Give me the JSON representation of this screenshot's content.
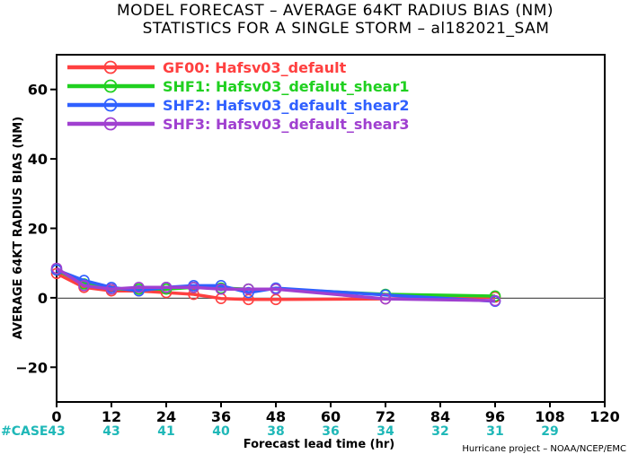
{
  "chart_data": {
    "type": "line",
    "title": "MODEL FORECAST – AVERAGE 64KT RADIUS BIAS (NM)",
    "subtitle": "STATISTICS FOR A SINGLE STORM – al182021_SAM",
    "xlabel": "Forecast lead time (hr)",
    "ylabel": "AVERAGE 64KT RADIUS BIAS (NM)",
    "xlim": [
      0,
      120
    ],
    "ylim": [
      -30,
      70
    ],
    "xticks": [
      0,
      12,
      24,
      36,
      48,
      60,
      72,
      84,
      96,
      108,
      120
    ],
    "yticks": [
      -20,
      0,
      20,
      40,
      60
    ],
    "zero_line": true,
    "grid": false,
    "legend_position": "top-left",
    "case_label": "#CASE",
    "case_hours": [
      0,
      12,
      24,
      36,
      48,
      60,
      72,
      84,
      96,
      108
    ],
    "case_counts": [
      43,
      43,
      41,
      40,
      38,
      36,
      34,
      32,
      31,
      29
    ],
    "credit": "Hurricane project – NOAA/NCEP/EMC",
    "series": [
      {
        "name": "GF00: Hafsv03_default",
        "color": "#ff4040",
        "points": [
          [
            0,
            7
          ],
          [
            6,
            3
          ],
          [
            12,
            2
          ],
          [
            18,
            2
          ],
          [
            24,
            1.5
          ],
          [
            30,
            1
          ],
          [
            36,
            -0.2
          ],
          [
            42,
            -0.5
          ],
          [
            48,
            -0.5
          ],
          [
            72,
            -0.3
          ],
          [
            96,
            0.2
          ]
        ]
      },
      {
        "name": "SHF1: Hafsv03_defalut_shear1",
        "color": "#20d020",
        "points": [
          [
            0,
            8
          ],
          [
            6,
            4
          ],
          [
            12,
            2.5
          ],
          [
            18,
            2.5
          ],
          [
            24,
            2.5
          ],
          [
            30,
            3
          ],
          [
            36,
            2.8
          ],
          [
            42,
            2.5
          ],
          [
            48,
            2.5
          ],
          [
            72,
            1
          ],
          [
            96,
            0.5
          ]
        ]
      },
      {
        "name": "SHF2: Hafsv03_default_shear2",
        "color": "#3060ff",
        "points": [
          [
            0,
            8
          ],
          [
            6,
            5
          ],
          [
            12,
            3
          ],
          [
            18,
            2
          ],
          [
            24,
            3
          ],
          [
            30,
            3.5
          ],
          [
            36,
            3.5
          ],
          [
            42,
            1.5
          ],
          [
            48,
            2.8
          ],
          [
            72,
            0.8
          ],
          [
            96,
            -1
          ]
        ]
      },
      {
        "name": "SHF3: Hafsv03_default_shear3",
        "color": "#a040d0",
        "points": [
          [
            0,
            8.5
          ],
          [
            6,
            3.5
          ],
          [
            12,
            2.5
          ],
          [
            18,
            3
          ],
          [
            24,
            3
          ],
          [
            30,
            3
          ],
          [
            36,
            2.5
          ],
          [
            42,
            2.5
          ],
          [
            48,
            2.5
          ],
          [
            72,
            -0.3
          ],
          [
            96,
            -0.8
          ]
        ]
      }
    ]
  }
}
